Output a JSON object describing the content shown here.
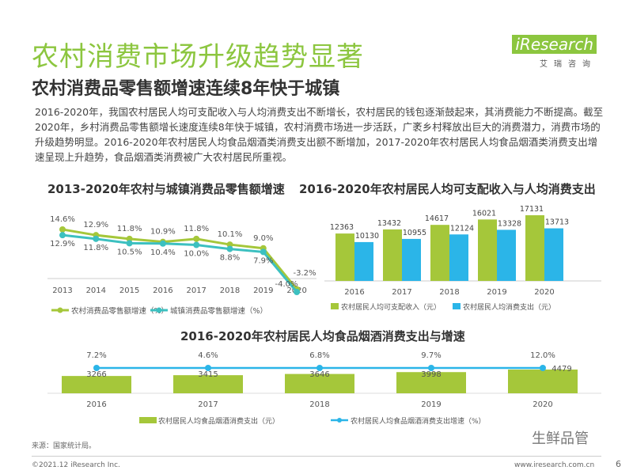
{
  "header": {
    "title": "农村消费市场升级趋势显著",
    "subtitle": "农村消费品零售额增速连续8年快于城镇",
    "logo_text": "iResearch",
    "logo_cn": "艾瑞咨询"
  },
  "paragraph": "2016-2020年，我国农村居民人均可支配收入与人均消费支出不断增长，农村居民的钱包逐渐鼓起来，其消费能力不断提高。截至2020年，乡村消费品零售额增长速度连续8年快于城镇，农村消费市场进一步活跃，广袤乡村释放出巨大的消费潜力，消费市场的升级趋势明显。2016-2020年农村居民人均食品烟酒类消费支出额不断增加，2017-2020年农村居民人均食品烟酒类消费支出增速呈现上升趋势，食品烟酒类消费被广大农村居民所重视。",
  "footer": {
    "source": "来源：国家统计局。",
    "copyright": "©2021.12 iResearch Inc.",
    "site": "www.iresearch.com.cn",
    "page": "6",
    "watermark": "生鲜品管"
  },
  "colors": {
    "green": "#a5c73a",
    "teal": "#3cc0c0",
    "blue": "#2bb5e8"
  },
  "chart_data": [
    {
      "type": "line",
      "title": "2013-2020年农村与城镇消费品零售额增速",
      "categories": [
        "2013",
        "2014",
        "2015",
        "2016",
        "2017",
        "2018",
        "2019",
        "2020"
      ],
      "series": [
        {
          "name": "农村消费品零售额增速（%）",
          "values": [
            14.6,
            12.9,
            11.8,
            10.9,
            11.8,
            10.1,
            9.0,
            -3.2
          ],
          "labels": [
            "14.6%",
            "12.9%",
            "11.8%",
            "10.9%",
            "11.8%",
            "10.1%",
            "9.0%",
            "-3.2%"
          ]
        },
        {
          "name": "城镇消费品零售额增速（%）",
          "values": [
            12.9,
            11.8,
            10.5,
            10.4,
            10.0,
            8.8,
            7.9,
            -4.0
          ],
          "labels": [
            "12.9%",
            "11.8%",
            "10.5%",
            "10.4%",
            "10.0%",
            "8.8%",
            "7.9%",
            "-4.0%"
          ]
        }
      ]
    },
    {
      "type": "bar",
      "title": "2016-2020年农村居民人均可支配收入与人均消费支出",
      "categories": [
        "2016",
        "2017",
        "2018",
        "2019",
        "2020"
      ],
      "series": [
        {
          "name": "农村居民人均可支配收入（元）",
          "values": [
            12363,
            13432,
            14617,
            16021,
            17131
          ]
        },
        {
          "name": "农村居民人均消费支出（元）",
          "values": [
            10130,
            10955,
            12124,
            13328,
            13713
          ]
        }
      ]
    },
    {
      "type": "bar",
      "title": "2016-2020年农村居民人均食品烟酒消费支出与增速",
      "categories": [
        "2016",
        "2017",
        "2018",
        "2019",
        "2020"
      ],
      "series": [
        {
          "name": "农村居民人均食品烟酒消费支出（元）",
          "values": [
            3266,
            3415,
            3646,
            3998,
            4479
          ]
        },
        {
          "name": "农村居民人均食品烟酒消费支出增速（%）",
          "values": [
            7.2,
            4.6,
            6.8,
            9.7,
            12.0
          ],
          "labels": [
            "7.2%",
            "4.6%",
            "6.8%",
            "9.7%",
            "12.0%"
          ]
        }
      ]
    }
  ]
}
